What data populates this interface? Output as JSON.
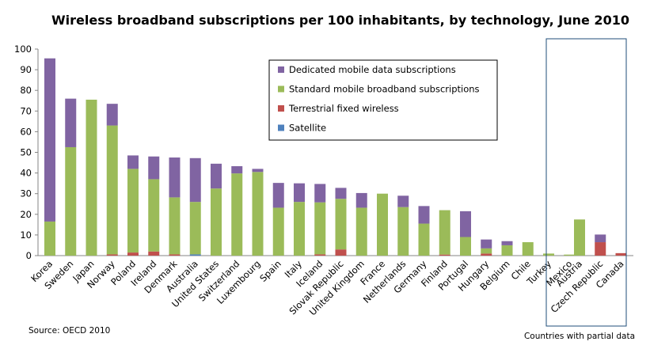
{
  "chart_data": {
    "type": "bar",
    "stacked": true,
    "title": "Wireless broadband subscriptions per 100 inhabitants, by technology, June 2010",
    "xlabel": "",
    "ylabel": "",
    "ylim": [
      0,
      100
    ],
    "yticks": [
      "0",
      "10",
      "20",
      "30",
      "40",
      "50",
      "60",
      "70",
      "80",
      "90",
      "100"
    ],
    "grid": false,
    "legend_position": "top-right inside plot",
    "categories": [
      "Korea",
      "Sweden",
      "Japan",
      "Norway",
      "Poland",
      "Ireland",
      "Denmark",
      "Australia",
      "United States",
      "Switzerland",
      "Luxembourg",
      "Spain",
      "Italy",
      "Iceland",
      "Slovak Republic",
      "United Kingdom",
      "France",
      "Netherlands",
      "Germany",
      "Finland",
      "Portugal",
      "Hungary",
      "Belgium",
      "Chile",
      "Turkey",
      "Mexico",
      "Austria",
      "Czech Republic",
      "Canada"
    ],
    "partial_data_group": {
      "label": "Countries with partial data",
      "categories": [
        "Austria",
        "Czech Republic",
        "Canada"
      ]
    },
    "series": [
      {
        "name": "Satellite",
        "color": "#4f81bd",
        "values": [
          0,
          0,
          0,
          0,
          0,
          0,
          0,
          0.6,
          0,
          0,
          0,
          0,
          0,
          0,
          0,
          0,
          0,
          0,
          0,
          0,
          0,
          0,
          0,
          0,
          0,
          0,
          0,
          0,
          0
        ]
      },
      {
        "name": "Terrestrial fixed wireless",
        "color": "#c0504d",
        "values": [
          0,
          0,
          0,
          0.6,
          1.5,
          2,
          0.6,
          0,
          0,
          0,
          0,
          0,
          0,
          0.6,
          3,
          0,
          0,
          0,
          0,
          0.5,
          0,
          1,
          0,
          0,
          0,
          0,
          0,
          6.5,
          1.2
        ]
      },
      {
        "name": "Standard mobile broadband subscriptions",
        "color": "#9bbb59",
        "values": [
          16.5,
          52.5,
          75.5,
          62.4,
          40.5,
          35,
          27.6,
          25.4,
          32.5,
          39.8,
          40.5,
          23.2,
          26,
          25.2,
          24.5,
          23.2,
          30,
          23.5,
          15.5,
          21.5,
          9,
          2.5,
          5,
          6.5,
          1,
          0.5,
          17.5,
          0,
          0
        ]
      },
      {
        "name": "Dedicated mobile data subscriptions",
        "color": "#8064a2",
        "values": [
          79,
          23.5,
          0,
          10.5,
          6.5,
          11,
          19.3,
          21.2,
          12,
          3.5,
          1.5,
          12,
          9,
          8.9,
          5.3,
          7.1,
          0,
          5.5,
          8.5,
          0,
          12.5,
          4.3,
          2,
          0,
          0,
          0,
          0,
          3.7,
          0
        ]
      }
    ],
    "legend_order": [
      "Dedicated mobile data subscriptions",
      "Standard mobile broadband subscriptions",
      "Terrestrial fixed wireless",
      "Satellite"
    ],
    "source": "Source: OECD 2010"
  }
}
